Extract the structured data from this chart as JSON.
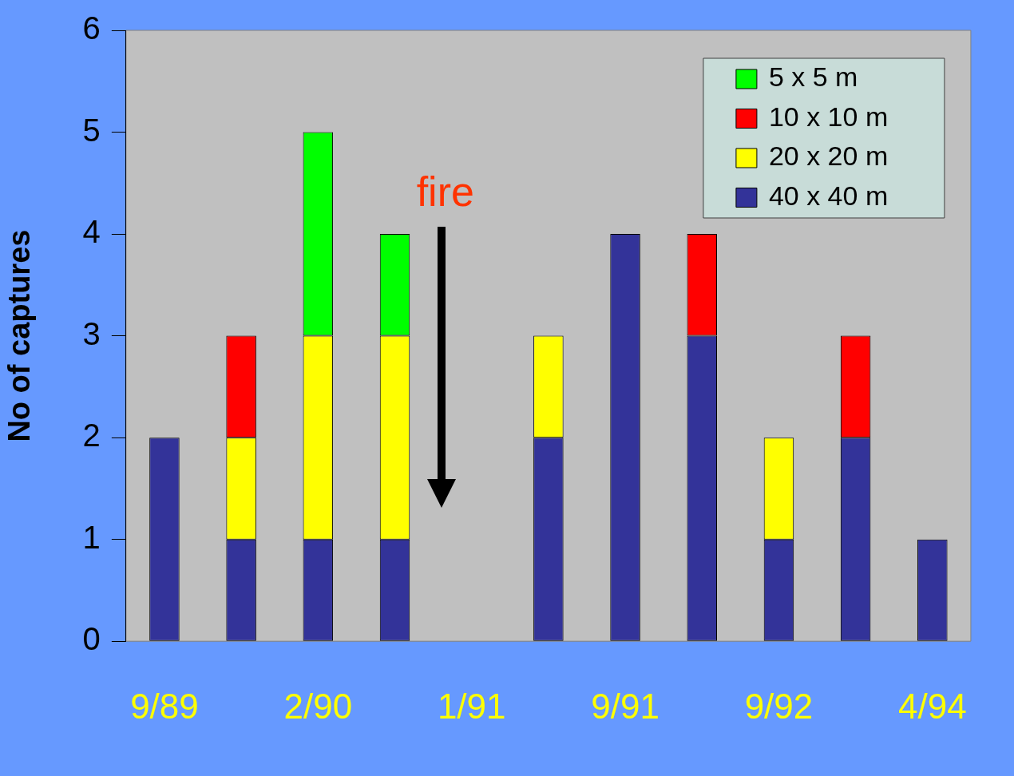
{
  "chart_data": {
    "type": "bar",
    "stacked": true,
    "categories": [
      "9/89",
      null,
      "2/90",
      null,
      "1/91",
      null,
      "9/91",
      null,
      "9/92",
      null,
      "4/94"
    ],
    "ylabel": "No of captures",
    "ylim": [
      0,
      6
    ],
    "yticks": [
      0,
      1,
      2,
      3,
      4,
      5,
      6
    ],
    "grid": false,
    "legend": "top right",
    "annotations": [
      "fire"
    ],
    "series": [
      {
        "name": "40 x 40 m",
        "color": "#333399",
        "values": [
          2,
          1,
          1,
          1,
          0,
          2,
          4,
          3,
          1,
          2,
          1
        ]
      },
      {
        "name": "20 x 20 m",
        "color": "#ffff00",
        "values": [
          0,
          1,
          2,
          2,
          0,
          1,
          0,
          0,
          1,
          0,
          0
        ]
      },
      {
        "name": "10 x 10 m",
        "color": "#ff0000",
        "values": [
          0,
          1,
          0,
          0,
          0,
          0,
          0,
          1,
          0,
          1,
          0
        ]
      },
      {
        "name": "5 x 5 m",
        "color": "#00ff00",
        "values": [
          0,
          0,
          2,
          1,
          0,
          0,
          0,
          0,
          0,
          0,
          0
        ]
      }
    ]
  }
}
